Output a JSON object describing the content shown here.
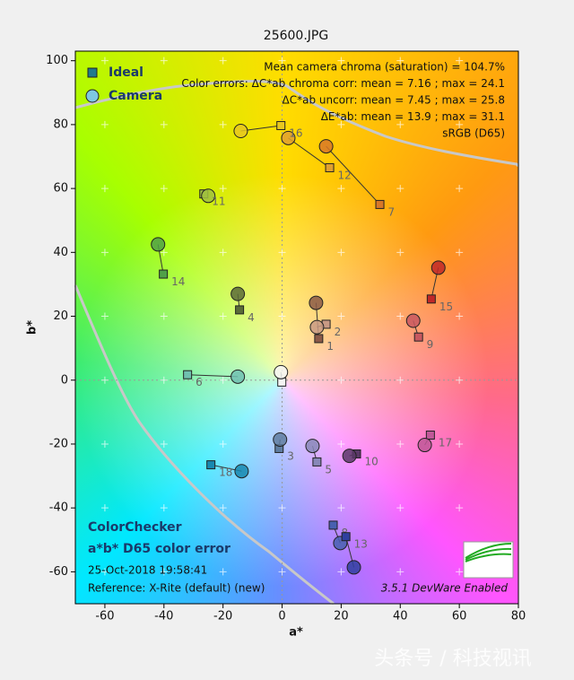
{
  "chart_data": {
    "type": "scatter",
    "title": "25600.JPG",
    "xlabel": "a*",
    "ylabel": "b*",
    "xlim": [
      -70,
      80
    ],
    "ylim": [
      -70,
      103
    ],
    "xticks": [
      -60,
      -40,
      -20,
      0,
      20,
      40,
      60,
      80
    ],
    "yticks": [
      -60,
      -40,
      -20,
      0,
      20,
      40,
      60,
      80,
      100
    ],
    "grid": true,
    "legend": "upper left",
    "point_labels": [
      "1",
      "2",
      "3",
      "4",
      "5",
      "6",
      "7",
      "8",
      "9",
      "10",
      "11",
      "12",
      "13",
      "14",
      "15",
      "16",
      "17",
      "18",
      null
    ],
    "point_colors": [
      "#8b5a48",
      "#c89a84",
      "#5f7da0",
      "#5a6b38",
      "#8888b8",
      "#70c0b0",
      "#d87828",
      "#4860b0",
      "#c85860",
      "#5a3868",
      "#a0c040",
      "#e0a030",
      "#3040a0",
      "#50a048",
      "#c02828",
      "#e8c820",
      "#c05898",
      "#1888b0",
      "#f4f4f4"
    ],
    "series": [
      {
        "name": "Ideal",
        "marker": "square",
        "color": "#1f7a8c",
        "x": [
          12.4,
          14.9,
          -1,
          -14.4,
          11.8,
          -32,
          33.1,
          17.3,
          46.2,
          25.2,
          -26.5,
          16.1,
          21.6,
          -40.2,
          50.5,
          -0.4,
          50.2,
          -24.1,
          -0.1
        ],
        "values": [
          13,
          17.5,
          -21.4,
          22,
          -25.6,
          1.7,
          55,
          -45.4,
          13.5,
          -23.1,
          58.3,
          66.5,
          -49,
          33.2,
          25.4,
          79.7,
          -17.2,
          -26.5,
          -0.6
        ]
      },
      {
        "name": "Camera",
        "marker": "circle",
        "color": "#7ec8e3",
        "x": [
          11.5,
          11.8,
          -0.7,
          -15,
          10.3,
          -15,
          14.9,
          19.7,
          44.4,
          22.8,
          -25,
          2.1,
          24.3,
          -42,
          52.9,
          -14,
          48.3,
          -13.7,
          -0.4
        ],
        "values": [
          24.2,
          16.6,
          -18.6,
          27,
          -20.6,
          1.1,
          73.2,
          -51,
          18.6,
          -23.7,
          57.7,
          75.8,
          -58.6,
          42.5,
          35.2,
          78,
          -20.3,
          -28.5,
          2.5
        ]
      }
    ],
    "annotations_right": [
      "Mean camera chroma (saturation) = 104.7%",
      "Color errors:  ΔC*ab chroma corr:  mean = 7.16 ;  max = 24.1",
      "ΔC*ab uncorr:  mean = 7.45 ;  max = 25.8",
      "ΔE*ab:  mean = 13.9 ;  max = 31.1",
      "sRGB (D65)"
    ],
    "annotations_left": [
      "ColorChecker",
      "a*b* D65 color error",
      "25-Oct-2018 19:58:41",
      "Reference: X-Rite (default) (new)"
    ],
    "version": "3.5.1  DevWare Enabled",
    "logo": "imatest"
  },
  "watermark": "头条号 / 科技视讯"
}
